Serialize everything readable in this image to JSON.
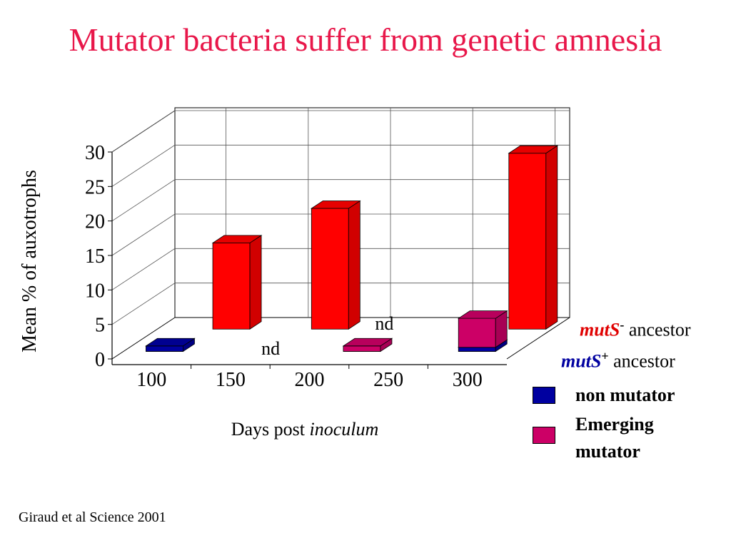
{
  "title": "Mutator bacteria suffer from genetic amnesia",
  "title_color": "#e8174a",
  "citation": "Giraud et al Science 2001",
  "chart_data": {
    "type": "bar",
    "projection": "3d",
    "xlabel_plain": "Days post ",
    "xlabel_italic": "inoculum",
    "ylabel": "Mean % of auxotrophs",
    "ylim": [
      0,
      30
    ],
    "yticks": [
      0,
      5,
      10,
      15,
      20,
      25,
      30
    ],
    "xticks": [
      100,
      150,
      200,
      250,
      300
    ],
    "grid": true,
    "rows": [
      {
        "name_gene": "mutS",
        "name_sup": "-",
        "name_rest": " ancestor",
        "gene_color": "#e00000",
        "color": "#ff0000",
        "bars": [
          {
            "day": 120,
            "value": 12.5
          },
          {
            "day": 180,
            "value": 17.5
          },
          {
            "day": 300,
            "value": 25.5
          }
        ]
      },
      {
        "name_gene": "mutS",
        "name_sup": "+",
        "name_rest": " ancestor",
        "gene_color": "#0000a0",
        "color": "#0000a0",
        "bars": [
          {
            "day": 100,
            "value": 0.8,
            "stack_value": 0
          },
          {
            "day": 220,
            "value": 0,
            "stack_value": 0.8
          },
          {
            "day": 290,
            "value": 0.6,
            "stack_value": 4.2
          }
        ]
      }
    ],
    "stack_color": "#cc0066",
    "annotations": [
      {
        "text": "nd",
        "day": 170,
        "row": 1
      },
      {
        "text": "nd",
        "day": 235,
        "row": 0
      }
    ],
    "legend": {
      "items": [
        {
          "label": "non mutator",
          "color": "#0000a0"
        },
        {
          "label": "Emerging mutator",
          "color": "#cc0066"
        }
      ]
    }
  }
}
